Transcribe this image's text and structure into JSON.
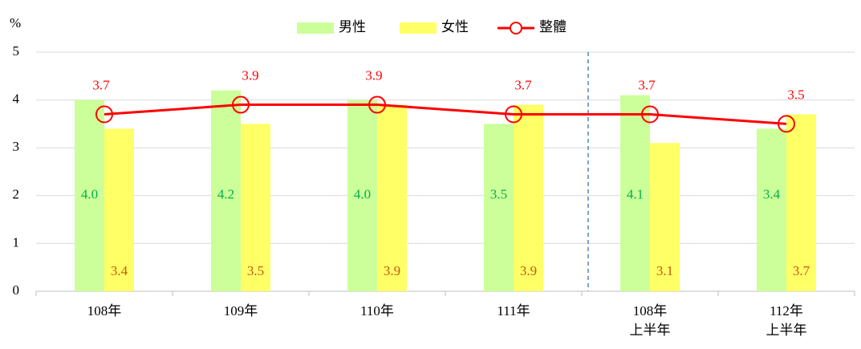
{
  "chart_data": {
    "type": "bar-line",
    "y_axis_label": "%",
    "categories": [
      "108年",
      "109年",
      "110年",
      "111年",
      "108年\n上半年",
      "112年\n上半年"
    ],
    "series": [
      {
        "name": "男性",
        "type": "bar",
        "color": "#ccff99",
        "label_color": "#00b050",
        "values": [
          4.0,
          4.2,
          4.0,
          3.5,
          4.1,
          3.4
        ],
        "value_labels": [
          "4.0",
          "4.2",
          "4.0",
          "3.5",
          "4.1",
          "3.4"
        ]
      },
      {
        "name": "女性",
        "type": "bar",
        "color": "#ffff66",
        "label_color": "#c55a11",
        "values": [
          3.4,
          3.5,
          3.9,
          3.9,
          3.1,
          3.7
        ]
      },
      {
        "name": "整體",
        "type": "line",
        "color": "#ff0000",
        "label_color": "#ff0000",
        "values": [
          3.7,
          3.9,
          3.9,
          3.7,
          3.7,
          3.5
        ]
      }
    ],
    "ylim": [
      0,
      5
    ],
    "yticks": [
      0,
      1,
      2,
      3,
      4,
      5
    ],
    "grid": true,
    "legend": "top"
  }
}
